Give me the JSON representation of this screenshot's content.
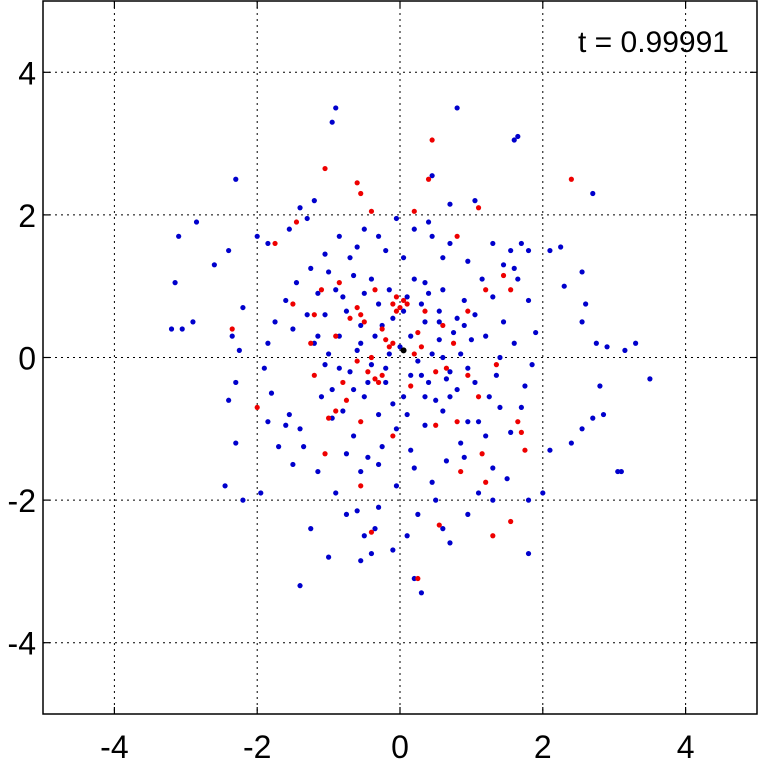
{
  "chart_data": {
    "type": "scatter",
    "title": "",
    "xlabel": "",
    "ylabel": "",
    "xlim": [
      -5,
      5
    ],
    "ylim": [
      -5,
      5
    ],
    "grid": true,
    "x_ticks": [
      -4,
      -2,
      0,
      2,
      4
    ],
    "y_ticks": [
      4,
      2,
      0,
      -2,
      -4
    ],
    "x_tick_labels": [
      "-4",
      "-2",
      "0",
      "2",
      "4"
    ],
    "y_tick_labels": [
      "4",
      "2",
      "0",
      "-2",
      "-4"
    ],
    "annotation": "t = 0.99991",
    "colors": {
      "series_a": "#0000cc",
      "series_b": "#ee0000",
      "center_marker": "#000000",
      "grid": "#000000",
      "axes": "#000000"
    },
    "series": [
      {
        "color": "#0000cc",
        "points": [
          [
            -0.9,
            3.5
          ],
          [
            -0.95,
            3.3
          ],
          [
            0.8,
            3.5
          ],
          [
            1.6,
            3.05
          ],
          [
            1.65,
            3.1
          ],
          [
            -2.3,
            2.5
          ],
          [
            -1.4,
            2.1
          ],
          [
            -1.2,
            2.2
          ],
          [
            -1.3,
            1.95
          ],
          [
            -1.55,
            1.8
          ],
          [
            -1.85,
            1.6
          ],
          [
            -2.0,
            1.7
          ],
          [
            -2.4,
            1.5
          ],
          [
            -2.6,
            1.3
          ],
          [
            -2.85,
            1.9
          ],
          [
            -3.1,
            1.7
          ],
          [
            -3.15,
            1.05
          ],
          [
            -2.9,
            0.5
          ],
          [
            -3.2,
            0.4
          ],
          [
            -3.05,
            0.4
          ],
          [
            -2.2,
            0.7
          ],
          [
            -2.35,
            0.3
          ],
          [
            -2.25,
            0.1
          ],
          [
            -2.3,
            -0.35
          ],
          [
            -2.4,
            -0.6
          ],
          [
            -2.3,
            -1.2
          ],
          [
            -2.45,
            -1.8
          ],
          [
            -2.2,
            -2.0
          ],
          [
            -1.95,
            -1.9
          ],
          [
            -1.7,
            -1.25
          ],
          [
            -1.5,
            -1.5
          ],
          [
            -1.4,
            -1.0
          ],
          [
            -1.55,
            -0.8
          ],
          [
            -1.85,
            -0.9
          ],
          [
            -1.25,
            -2.4
          ],
          [
            -1.4,
            -3.2
          ],
          [
            -1.0,
            -2.8
          ],
          [
            -0.75,
            -2.2
          ],
          [
            -0.55,
            -2.85
          ],
          [
            -0.5,
            -2.5
          ],
          [
            -0.4,
            -2.75
          ],
          [
            -0.3,
            -2.1
          ],
          [
            -0.1,
            -2.7
          ],
          [
            0.1,
            -2.5
          ],
          [
            0.2,
            -3.1
          ],
          [
            0.3,
            -3.3
          ],
          [
            0.5,
            -2.0
          ],
          [
            0.7,
            -2.6
          ],
          [
            0.9,
            -1.4
          ],
          [
            1.1,
            -1.9
          ],
          [
            1.3,
            -2.0
          ],
          [
            1.5,
            -1.7
          ],
          [
            1.8,
            -2.0
          ],
          [
            1.8,
            -2.75
          ],
          [
            2.0,
            -1.9
          ],
          [
            2.1,
            -1.3
          ],
          [
            2.4,
            -1.2
          ],
          [
            2.55,
            -1.0
          ],
          [
            2.7,
            -0.85
          ],
          [
            2.85,
            -0.8
          ],
          [
            3.05,
            -1.6
          ],
          [
            3.1,
            -1.6
          ],
          [
            2.8,
            -0.4
          ],
          [
            3.3,
            0.2
          ],
          [
            3.5,
            -0.3
          ],
          [
            3.15,
            0.1
          ],
          [
            2.9,
            0.15
          ],
          [
            2.55,
            0.5
          ],
          [
            2.6,
            0.75
          ],
          [
            2.75,
            0.2
          ],
          [
            2.3,
            1.0
          ],
          [
            2.1,
            1.5
          ],
          [
            2.25,
            1.55
          ],
          [
            2.55,
            1.2
          ],
          [
            2.7,
            2.3
          ],
          [
            1.7,
            1.6
          ],
          [
            1.8,
            1.5
          ],
          [
            1.55,
            1.5
          ],
          [
            1.6,
            1.25
          ],
          [
            1.3,
            1.6
          ],
          [
            1.05,
            2.2
          ],
          [
            0.7,
            2.15
          ],
          [
            0.45,
            2.55
          ],
          [
            0.4,
            1.9
          ],
          [
            0.6,
            1.4
          ],
          [
            0.9,
            0.8
          ],
          [
            1.05,
            0.6
          ],
          [
            1.2,
            0.3
          ],
          [
            1.4,
            0.0
          ],
          [
            1.6,
            0.2
          ],
          [
            1.75,
            -0.4
          ],
          [
            1.4,
            -0.7
          ],
          [
            1.2,
            -1.1
          ],
          [
            0.95,
            -0.9
          ],
          [
            0.7,
            -0.2
          ],
          [
            0.55,
            0.5
          ],
          [
            0.4,
            0.9
          ],
          [
            0.2,
            1.1
          ],
          [
            0.05,
            1.4
          ],
          [
            -0.2,
            1.5
          ],
          [
            -0.5,
            1.8
          ],
          [
            -0.7,
            1.4
          ],
          [
            -1.0,
            1.2
          ],
          [
            -1.15,
            0.9
          ],
          [
            -1.3,
            0.6
          ],
          [
            -1.5,
            0.4
          ],
          [
            -1.2,
            0.2
          ],
          [
            -1.05,
            -0.1
          ],
          [
            -0.95,
            -0.45
          ],
          [
            -0.8,
            -0.75
          ],
          [
            -0.65,
            -1.1
          ],
          [
            -0.45,
            -1.4
          ],
          [
            -0.25,
            -1.25
          ],
          [
            -0.05,
            -1.0
          ],
          [
            0.15,
            -1.3
          ],
          [
            0.35,
            -0.95
          ],
          [
            0.5,
            -0.6
          ],
          [
            0.65,
            -0.3
          ],
          [
            0.85,
            0.05
          ],
          [
            0.75,
            0.35
          ],
          [
            0.55,
            0.65
          ],
          [
            0.35,
            0.5
          ],
          [
            0.15,
            0.3
          ],
          [
            -0.1,
            0.55
          ],
          [
            -0.3,
            0.75
          ],
          [
            -0.5,
            0.9
          ],
          [
            -0.75,
            0.65
          ],
          [
            -0.85,
            0.3
          ],
          [
            -0.6,
            0.1
          ],
          [
            -0.4,
            -0.1
          ],
          [
            -0.2,
            -0.35
          ],
          [
            0.05,
            -0.55
          ],
          [
            0.3,
            -0.25
          ],
          [
            0.45,
            0.05
          ],
          [
            0.25,
            -0.05
          ],
          [
            0.0,
            0.15
          ],
          [
            -0.15,
            0.05
          ],
          [
            -0.35,
            0.3
          ],
          [
            -0.55,
            0.45
          ],
          [
            -0.7,
            -0.2
          ],
          [
            -0.5,
            -0.55
          ],
          [
            -0.3,
            -0.8
          ],
          [
            -0.1,
            -0.65
          ],
          [
            0.1,
            -0.8
          ],
          [
            0.35,
            -0.55
          ],
          [
            0.6,
            -0.75
          ],
          [
            0.8,
            -0.45
          ],
          [
            0.95,
            -0.15
          ],
          [
            1.0,
            0.25
          ],
          [
            0.8,
            0.55
          ],
          [
            0.6,
            0.95
          ],
          [
            0.35,
            1.05
          ],
          [
            0.1,
            0.85
          ],
          [
            -0.15,
            0.95
          ],
          [
            -0.4,
            1.1
          ],
          [
            -0.65,
            1.15
          ],
          [
            -0.9,
            0.95
          ],
          [
            -1.05,
            0.6
          ],
          [
            -1.15,
            0.3
          ],
          [
            -1.0,
            0.05
          ],
          [
            -0.85,
            -0.15
          ],
          [
            -0.95,
            -0.85
          ],
          [
            -0.75,
            -1.35
          ],
          [
            -0.55,
            -1.6
          ],
          [
            -0.3,
            -1.5
          ],
          [
            -0.05,
            -1.8
          ],
          [
            0.2,
            -1.55
          ],
          [
            0.45,
            -1.75
          ],
          [
            0.65,
            -1.45
          ],
          [
            0.85,
            -1.2
          ],
          [
            1.1,
            -0.9
          ],
          [
            1.25,
            -0.55
          ],
          [
            1.35,
            -0.25
          ],
          [
            1.45,
            0.5
          ],
          [
            1.3,
            0.85
          ],
          [
            1.15,
            1.1
          ],
          [
            0.95,
            1.35
          ],
          [
            0.7,
            1.6
          ],
          [
            0.45,
            1.7
          ],
          [
            0.2,
            1.8
          ],
          [
            -0.05,
            1.95
          ],
          [
            -0.3,
            1.7
          ],
          [
            -0.6,
            1.55
          ],
          [
            -0.85,
            1.7
          ],
          [
            -1.05,
            1.45
          ],
          [
            -1.25,
            1.25
          ],
          [
            -1.45,
            1.05
          ],
          [
            -1.6,
            0.8
          ],
          [
            -1.75,
            0.5
          ],
          [
            -1.85,
            0.2
          ],
          [
            -1.9,
            -0.15
          ],
          [
            -1.8,
            -0.5
          ],
          [
            -1.6,
            -0.95
          ],
          [
            -1.35,
            -1.25
          ],
          [
            -1.15,
            -1.6
          ],
          [
            -0.9,
            -1.9
          ],
          [
            -0.6,
            -2.15
          ],
          [
            -0.35,
            -2.4
          ],
          [
            0.25,
            -2.2
          ],
          [
            0.6,
            -2.4
          ],
          [
            0.95,
            -2.2
          ],
          [
            1.3,
            -1.55
          ],
          [
            1.55,
            -1.05
          ],
          [
            1.7,
            -0.7
          ],
          [
            1.85,
            -0.1
          ],
          [
            1.9,
            0.35
          ],
          [
            1.8,
            0.8
          ],
          [
            1.65,
            1.1
          ],
          [
            1.45,
            1.3
          ],
          [
            -0.55,
            0.2
          ],
          [
            -0.25,
            0.45
          ],
          [
            0.55,
            0.25
          ],
          [
            0.7,
            -0.55
          ],
          [
            -0.8,
            0.85
          ],
          [
            0.05,
            0.65
          ],
          [
            0.3,
            0.75
          ],
          [
            -0.45,
            -0.35
          ],
          [
            0.15,
            -0.25
          ],
          [
            0.6,
            0.0
          ],
          [
            -0.2,
            -0.15
          ],
          [
            -0.65,
            -0.45
          ],
          [
            0.4,
            -0.35
          ],
          [
            0.9,
            0.45
          ],
          [
            -1.1,
            -0.55
          ],
          [
            1.05,
            -0.35
          ]
        ]
      },
      {
        "color": "#ee0000",
        "points": [
          [
            -1.05,
            2.65
          ],
          [
            -0.6,
            2.45
          ],
          [
            0.4,
            2.5
          ],
          [
            0.45,
            3.05
          ],
          [
            2.4,
            2.5
          ],
          [
            -1.45,
            1.9
          ],
          [
            -1.75,
            1.6
          ],
          [
            -2.35,
            0.4
          ],
          [
            -2.0,
            -0.7
          ],
          [
            -0.55,
            2.3
          ],
          [
            -0.4,
            2.05
          ],
          [
            0.2,
            2.05
          ],
          [
            0.8,
            1.7
          ],
          [
            1.1,
            2.1
          ],
          [
            1.45,
            1.15
          ],
          [
            1.55,
            0.95
          ],
          [
            -0.05,
            0.85
          ],
          [
            0.05,
            0.8
          ],
          [
            -0.1,
            0.75
          ],
          [
            0.0,
            0.7
          ],
          [
            -0.05,
            0.65
          ],
          [
            0.1,
            0.75
          ],
          [
            -0.6,
            0.7
          ],
          [
            -0.55,
            0.6
          ],
          [
            -0.7,
            0.55
          ],
          [
            -0.5,
            0.5
          ],
          [
            -0.4,
            0.0
          ],
          [
            -0.35,
            -0.3
          ],
          [
            -0.3,
            -0.35
          ],
          [
            -0.25,
            -0.25
          ],
          [
            -0.45,
            -0.2
          ],
          [
            -0.15,
            0.15
          ],
          [
            -0.1,
            0.2
          ],
          [
            0.05,
            0.1
          ],
          [
            -0.2,
            0.25
          ],
          [
            0.2,
            0.05
          ],
          [
            0.3,
            0.15
          ],
          [
            0.6,
            0.45
          ],
          [
            0.75,
            0.2
          ],
          [
            -0.8,
            -0.35
          ],
          [
            -0.9,
            0.3
          ],
          [
            -1.25,
            0.2
          ],
          [
            -1.2,
            -0.25
          ],
          [
            -0.9,
            -0.75
          ],
          [
            -0.55,
            -0.9
          ],
          [
            -0.1,
            -1.1
          ],
          [
            0.5,
            -0.95
          ],
          [
            0.8,
            -0.9
          ],
          [
            1.1,
            -0.55
          ],
          [
            1.35,
            -0.1
          ],
          [
            1.65,
            -0.9
          ],
          [
            1.7,
            -1.05
          ],
          [
            1.75,
            -1.3
          ],
          [
            1.15,
            -1.35
          ],
          [
            0.85,
            -1.6
          ],
          [
            -0.55,
            -1.8
          ],
          [
            -1.05,
            -1.35
          ],
          [
            -0.4,
            -2.45
          ],
          [
            0.55,
            -2.35
          ],
          [
            1.3,
            -2.5
          ],
          [
            1.55,
            -2.3
          ],
          [
            0.25,
            -3.1
          ],
          [
            1.2,
            -1.75
          ],
          [
            -1.5,
            0.75
          ],
          [
            -1.2,
            0.6
          ],
          [
            -1.0,
            -0.85
          ],
          [
            0.35,
            0.65
          ],
          [
            0.65,
            -0.15
          ],
          [
            -0.25,
            0.4
          ],
          [
            0.15,
            -0.4
          ],
          [
            -0.6,
            -0.05
          ],
          [
            0.95,
            0.65
          ],
          [
            1.2,
            0.95
          ],
          [
            -0.85,
            1.05
          ],
          [
            -0.35,
            0.95
          ],
          [
            0.5,
            -0.2
          ],
          [
            0.25,
            0.35
          ],
          [
            -0.75,
            -0.6
          ],
          [
            0.95,
            -0.25
          ],
          [
            -1.1,
            0.95
          ]
        ]
      }
    ]
  }
}
